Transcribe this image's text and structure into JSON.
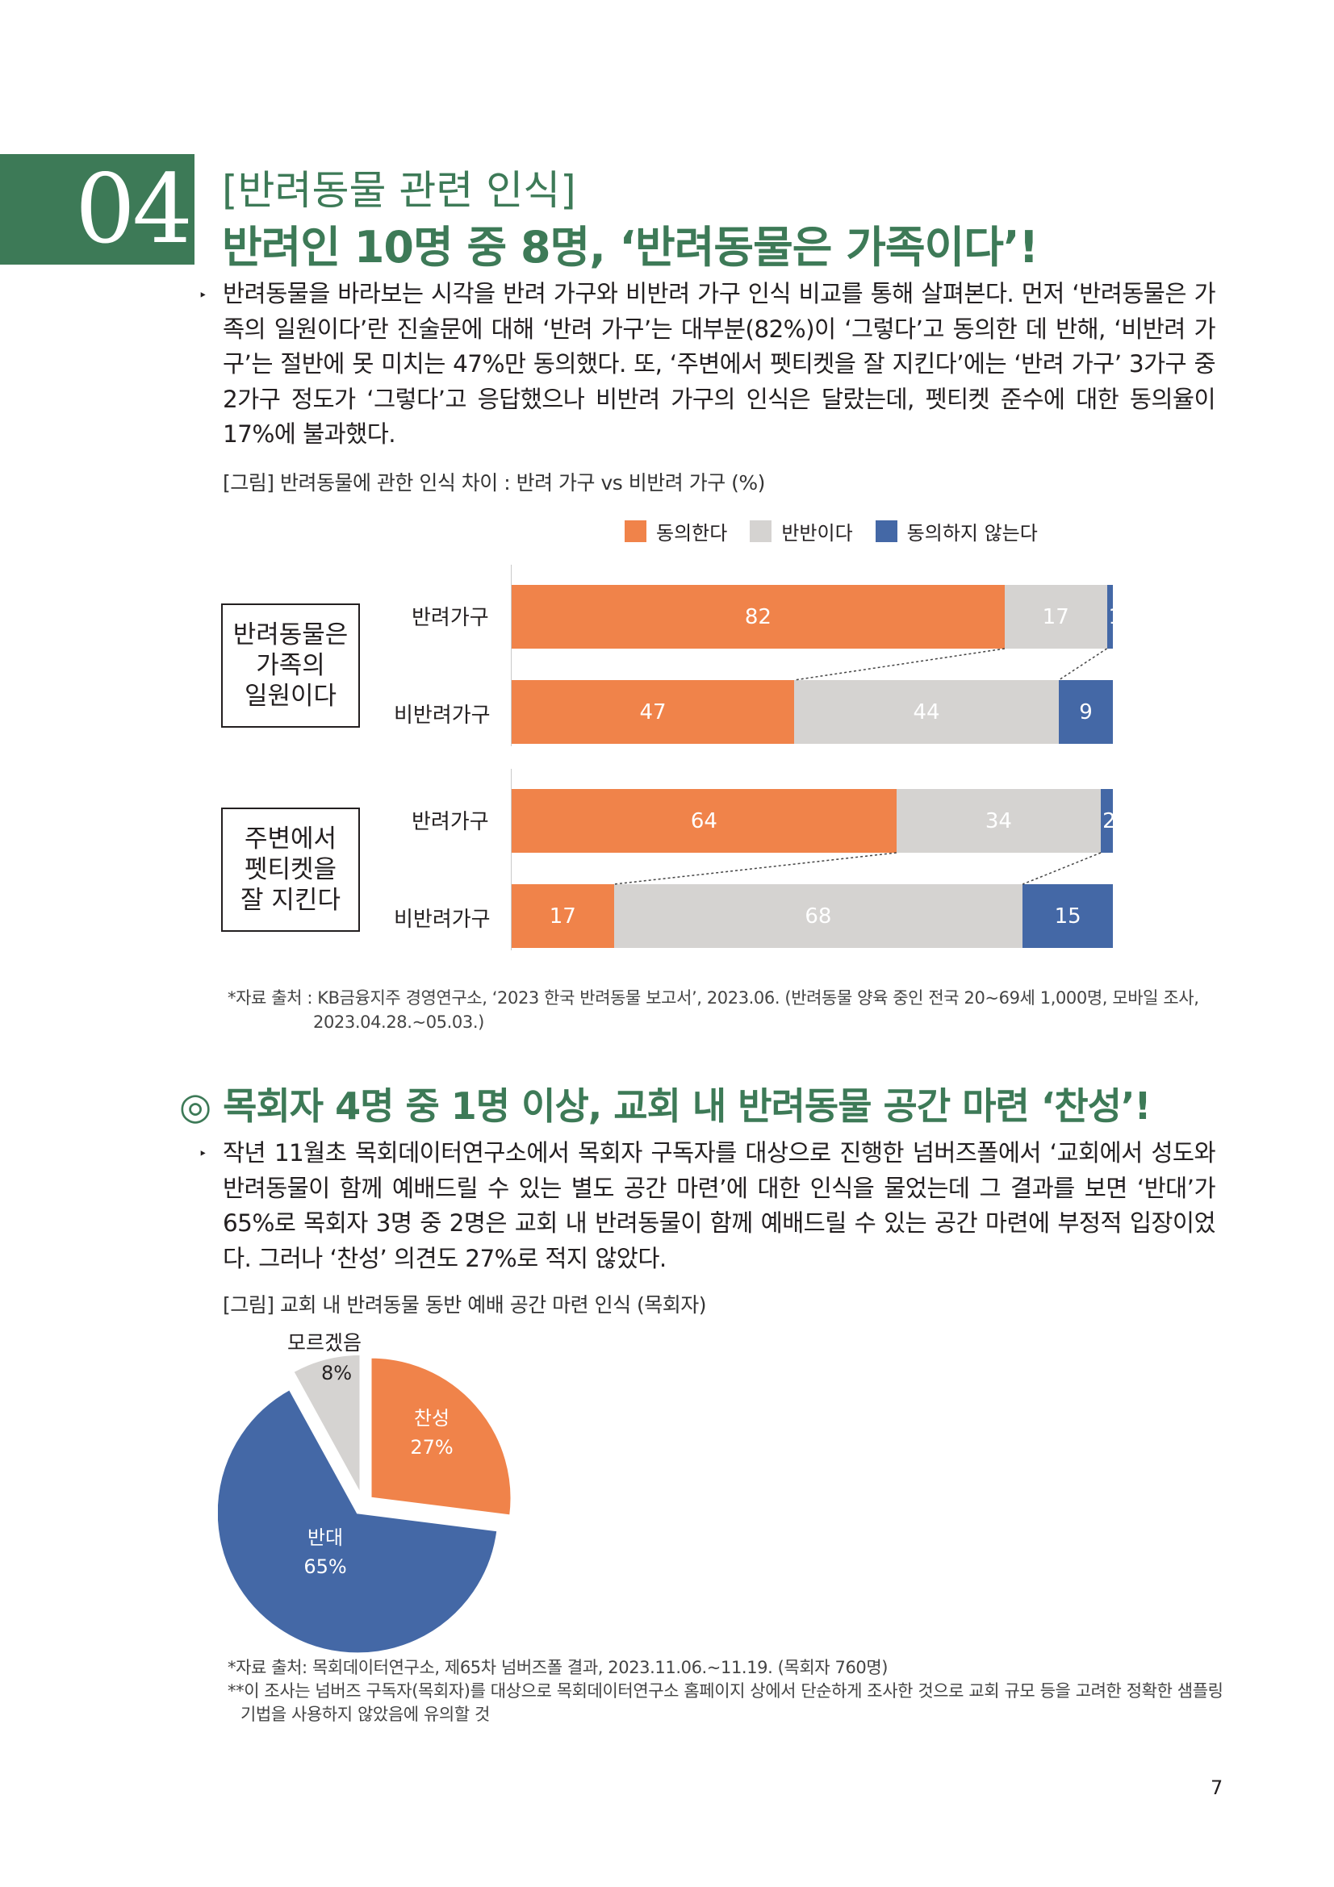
{
  "header": {
    "number": "04",
    "subtitle": "[반려동물 관련 인식]",
    "title": "반려인 10명 중 8명, ‘반려동물은 가족이다’!"
  },
  "intro": {
    "bullet": "‣",
    "text": "반려동물을 바라보는 시각을 반려 가구와 비반려 가구 인식 비교를 통해 살펴본다. 먼저 ‘반려동물은 가족의 일원이다’란 진술문에 대해 ‘반려 가구’는 대부분(82%)이 ‘그렇다’고 동의한 데 반해, ‘비반려 가구’는 절반에 못 미치는 47%만 동의했다. 또, ‘주변에서 펫티켓을 잘 지킨다’에는 ‘반려 가구’ 3가구 중 2가구 정도가 ‘그렇다’고 응답했으나 비반려 가구의 인식은 달랐는데, 펫티켓 준수에 대한 동의율이 17%에 불과했다."
  },
  "figure1": {
    "caption": "[그림] 반려동물에 관한 인식 차이 : 반려 가구 vs 비반려 가구 (%)",
    "source_line1": "*자료 출처 : KB금융지주 경영연구소, ‘2023 한국 반려동물 보고서’, 2023.06. (반려동물 양육 중인 전국 20~69세 1,000명, 모바일 조사,",
    "source_line2": "2023.04.28.~05.03.)"
  },
  "colors": {
    "agree": "#f0834a",
    "neutral": "#d5d3d1",
    "disagree": "#4468a6",
    "green": "#3d7a57"
  },
  "chart_data": [
    {
      "type": "bar",
      "orientation": "horizontal",
      "stacked": true,
      "legend": [
        "동의한다",
        "반반이다",
        "동의하지 않는다"
      ],
      "legend_position": "top-right",
      "groups": [
        {
          "label": "반려동물은 가족의 일원이다",
          "label_lines": [
            "반려동물은",
            "가족의",
            "일원이다"
          ],
          "rows": [
            {
              "label": "반려가구",
              "values": [
                82,
                17,
                1
              ]
            },
            {
              "label": "비반려가구",
              "values": [
                47,
                44,
                9
              ]
            }
          ]
        },
        {
          "label": "주변에서 펫티켓을 잘 지킨다",
          "label_lines": [
            "주변에서",
            "펫티켓을",
            "잘 지킨다"
          ],
          "rows": [
            {
              "label": "반려가구",
              "values": [
                64,
                34,
                2
              ]
            },
            {
              "label": "비반려가구",
              "values": [
                17,
                68,
                15
              ]
            }
          ]
        }
      ],
      "xlim": [
        0,
        100
      ]
    },
    {
      "type": "pie",
      "slices": [
        {
          "label": "찬성",
          "value": 27,
          "display": "27%"
        },
        {
          "label": "반대",
          "value": 65,
          "display": "65%"
        },
        {
          "label": "모르겠음",
          "value": 8,
          "display": "8%"
        }
      ]
    }
  ],
  "section2": {
    "title": "◎ 목회자 4명 중 1명 이상, 교회 내 반려동물 공간 마련 ‘찬성’!",
    "bullet": "‣",
    "text": "작년 11월초 목회데이터연구소에서 목회자 구독자를 대상으로 진행한 넘버즈폴에서 ‘교회에서 성도와 반려동물이 함께 예배드릴 수 있는 별도 공간 마련’에 대한 인식을 물었는데 그 결과를 보면 ‘반대’가 65%로 목회자 3명 중 2명은 교회 내 반려동물이 함께 예배드릴 수 있는 공간 마련에 부정적 입장이었다. 그러나 ‘찬성’ 의견도 27%로 적지 않았다."
  },
  "figure2": {
    "caption": "[그림] 교회 내 반려동물 동반 예배 공간 마련 인식 (목회자)",
    "source_line1": "*자료 출처: 목회데이터연구소, 제65차 넘버즈폴 결과, 2023.11.06.~11.19. (목회자 760명)",
    "source_line2": "**이 조사는 넘버즈 구독자(목회자)를 대상으로 목회데이터연구소 홈페이지 상에서 단순하게 조사한 것으로 교회 규모 등을 고려한 정확한 샘플링",
    "source_line3": "기법을 사용하지 않았음에 유의할 것"
  },
  "page_number": "7"
}
